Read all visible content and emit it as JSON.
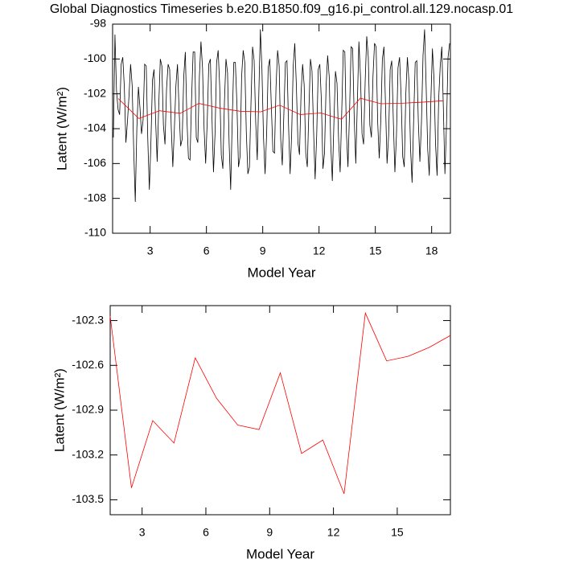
{
  "chart_data": [
    {
      "type": "line",
      "title": "Global Diagnostics Timeseries b.e20.B1850.f09_g16.pi_control.all.129.nocasp.01",
      "x_label": "Model Year",
      "y_label": "Latent (W/m²)",
      "xlim": [
        1,
        19
      ],
      "xticks": [
        3,
        6,
        9,
        12,
        15,
        18
      ],
      "ylim": [
        -110,
        -98
      ],
      "yticks": [
        -110,
        -108,
        -106,
        -104,
        -102,
        -100,
        -98
      ],
      "series": [
        {
          "color": "#000000",
          "values": [
            -104.5,
            -98.6,
            -101.8,
            -102.9,
            -103.2,
            -100.3,
            -99.9,
            -101.6,
            -104.8,
            -103.6,
            -102.1,
            -100.3,
            -101.5,
            -105.2,
            -108.2,
            -104.0,
            -101.6,
            -102.8,
            -104.3,
            -103.5,
            -100.3,
            -100.4,
            -104.6,
            -107.5,
            -104.8,
            -101.2,
            -100.6,
            -103.5,
            -105.9,
            -102.7,
            -100.0,
            -100.4,
            -103.8,
            -104.9,
            -101.7,
            -100.3,
            -100.6,
            -103.9,
            -106.2,
            -104.0,
            -101.5,
            -100.3,
            -102.9,
            -105.0,
            -104.6,
            -101.0,
            -99.6,
            -103.4,
            -105.7,
            -105.8,
            -102.3,
            -99.6,
            -99.6,
            -104.5,
            -104.8,
            -101.0,
            -99.0,
            -100.5,
            -104.0,
            -106.0,
            -103.6,
            -100.3,
            -100.0,
            -103.2,
            -106.5,
            -104.3,
            -100.2,
            -99.5,
            -101.6,
            -105.5,
            -106.3,
            -102.5,
            -100.0,
            -100.8,
            -104.8,
            -107.5,
            -103.5,
            -100.2,
            -100.2,
            -102.6,
            -106.2,
            -105.6,
            -101.0,
            -99.5,
            -100.2,
            -104.2,
            -106.6,
            -106.2,
            -102.5,
            -99.3,
            -100.1,
            -103.6,
            -105.8,
            -102.0,
            -98.3,
            -100.6,
            -104.5,
            -106.6,
            -104.3,
            -100.5,
            -100.0,
            -102.7,
            -105.3,
            -105.4,
            -101.6,
            -99.5,
            -100.4,
            -104.6,
            -106.1,
            -103.2,
            -100.2,
            -100.1,
            -103.8,
            -106.6,
            -104.3,
            -100.4,
            -99.1,
            -101.5,
            -104.8,
            -105.5,
            -102.0,
            -100.3,
            -101.5,
            -105.4,
            -106.2,
            -103.0,
            -100.0,
            -100.7,
            -104.1,
            -106.9,
            -104.4,
            -100.6,
            -100.3,
            -102.4,
            -106.3,
            -105.4,
            -101.6,
            -99.8,
            -101.0,
            -104.9,
            -107.0,
            -103.7,
            -100.7,
            -101.4,
            -104.6,
            -106.5,
            -103.1,
            -99.5,
            -99.6,
            -104.2,
            -106.2,
            -103.1,
            -99.3,
            -99.4,
            -103.4,
            -106.0,
            -102.5,
            -99.0,
            -101.0,
            -104.3,
            -104.9,
            -101.3,
            -98.7,
            -99.9,
            -103.8,
            -104.5,
            -101.0,
            -99.1,
            -99.3,
            -103.6,
            -105.7,
            -103.5,
            -100.0,
            -99.3,
            -102.6,
            -106.0,
            -104.4,
            -100.6,
            -100.1,
            -103.5,
            -106.5,
            -104.4,
            -100.5,
            -99.9,
            -102.2,
            -105.6,
            -106.2,
            -102.0,
            -99.9,
            -101.3,
            -105.1,
            -107.1,
            -103.5,
            -100.2,
            -100.1,
            -103.6,
            -105.9,
            -103.6,
            -99.8,
            -98.3,
            -101.6,
            -105.2,
            -106.7,
            -102.4,
            -99.4,
            -101.1,
            -104.9,
            -106.7,
            -102.3,
            -100.4,
            -99.3,
            -102.8,
            -106.6,
            -103.8,
            -99.9,
            -99.1
          ]
        },
        {
          "color": "#ff0000",
          "x": [
            1.3,
            2.4,
            3.5,
            4.6,
            5.6,
            6.7,
            7.8,
            8.9,
            9.9,
            11.0,
            12.1,
            13.2,
            14.2,
            15.3,
            16.4,
            17.5,
            18.6
          ],
          "values": [
            -102.27,
            -103.42,
            -102.97,
            -103.12,
            -102.55,
            -102.82,
            -103.0,
            -103.03,
            -102.65,
            -103.19,
            -103.1,
            -103.46,
            -102.25,
            -102.57,
            -102.54,
            -102.48,
            -102.4
          ]
        }
      ]
    },
    {
      "type": "line",
      "x_label": "Model Year",
      "y_label": "Latent (W/m²)",
      "xlim": [
        1.5,
        17.5
      ],
      "xticks": [
        3,
        6,
        9,
        12,
        15
      ],
      "ylim": [
        -103.6,
        -102.2
      ],
      "yticks": [
        -103.5,
        -103.2,
        -102.9,
        -102.6,
        -102.3
      ],
      "series": [
        {
          "color": "#ff0000",
          "x": [
            1.5,
            2.5,
            3.5,
            4.5,
            5.5,
            6.5,
            7.5,
            8.5,
            9.5,
            10.5,
            11.5,
            12.5,
            13.5,
            14.5,
            15.5,
            16.5,
            17.5
          ],
          "values": [
            -102.27,
            -103.42,
            -102.97,
            -103.12,
            -102.55,
            -102.82,
            -103.0,
            -103.03,
            -102.65,
            -103.19,
            -103.1,
            -103.46,
            -102.25,
            -102.57,
            -102.54,
            -102.48,
            -102.4
          ]
        }
      ]
    }
  ]
}
